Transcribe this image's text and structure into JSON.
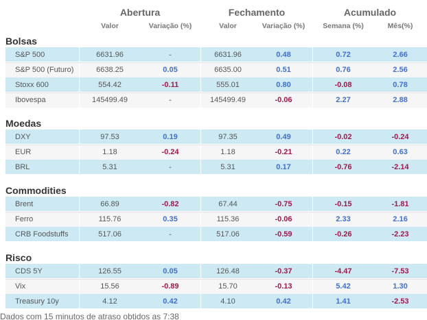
{
  "header": {
    "groups": [
      "Abertura",
      "Fechamento",
      "Acumulado"
    ],
    "columns": [
      "Valor",
      "Variação (%)",
      "Valor",
      "Variação (%)",
      "Semana (%)",
      "Mês(%)"
    ]
  },
  "sections": [
    {
      "title": "Bolsas",
      "rows": [
        {
          "name": "S&P 500",
          "cells": [
            "6631.96",
            "-",
            "6631.96",
            "0.48",
            "0.72",
            "2.66"
          ]
        },
        {
          "name": "S&P 500 (Futuro)",
          "cells": [
            "6638.25",
            "0.05",
            "6635.00",
            "0.51",
            "0.76",
            "2.56"
          ]
        },
        {
          "name": "Stoxx 600",
          "cells": [
            "554.42",
            "-0.11",
            "555.01",
            "0.80",
            "-0.08",
            "0.78"
          ]
        },
        {
          "name": "Ibovespa",
          "cells": [
            "145499.49",
            "-",
            "145499.49",
            "-0.06",
            "2.27",
            "2.88"
          ]
        }
      ]
    },
    {
      "title": "Moedas",
      "rows": [
        {
          "name": "DXY",
          "cells": [
            "97.53",
            "0.19",
            "97.35",
            "0.49",
            "-0.02",
            "-0.24"
          ]
        },
        {
          "name": "EUR",
          "cells": [
            "1.18",
            "-0.24",
            "1.18",
            "-0.21",
            "0.22",
            "0.63"
          ]
        },
        {
          "name": "BRL",
          "cells": [
            "5.31",
            "-",
            "5.31",
            "0.17",
            "-0.76",
            "-2.14"
          ]
        }
      ]
    },
    {
      "title": "Commodities",
      "rows": [
        {
          "name": "Brent",
          "cells": [
            "66.89",
            "-0.82",
            "67.44",
            "-0.75",
            "-0.15",
            "-1.81"
          ]
        },
        {
          "name": "Ferro",
          "cells": [
            "115.76",
            "0.35",
            "115.36",
            "-0.06",
            "2.33",
            "2.16"
          ]
        },
        {
          "name": "CRB Foodstuffs",
          "cells": [
            "517.06",
            "-",
            "517.06",
            "-0.59",
            "-0.26",
            "-2.23"
          ]
        }
      ]
    },
    {
      "title": "Risco",
      "rows": [
        {
          "name": "CDS 5Y",
          "cells": [
            "126.55",
            "0.05",
            "126.48",
            "-0.37",
            "-4.47",
            "-7.53"
          ]
        },
        {
          "name": "Vix",
          "cells": [
            "15.56",
            "-0.89",
            "15.70",
            "-0.13",
            "5.42",
            "1.30"
          ]
        },
        {
          "name": "Treasury 10y",
          "cells": [
            "4.12",
            "0.42",
            "4.10",
            "0.42",
            "1.41",
            "-2.53"
          ]
        }
      ]
    }
  ],
  "footer": "Dados com 15 minutos de atraso obtidos as 7:38"
}
